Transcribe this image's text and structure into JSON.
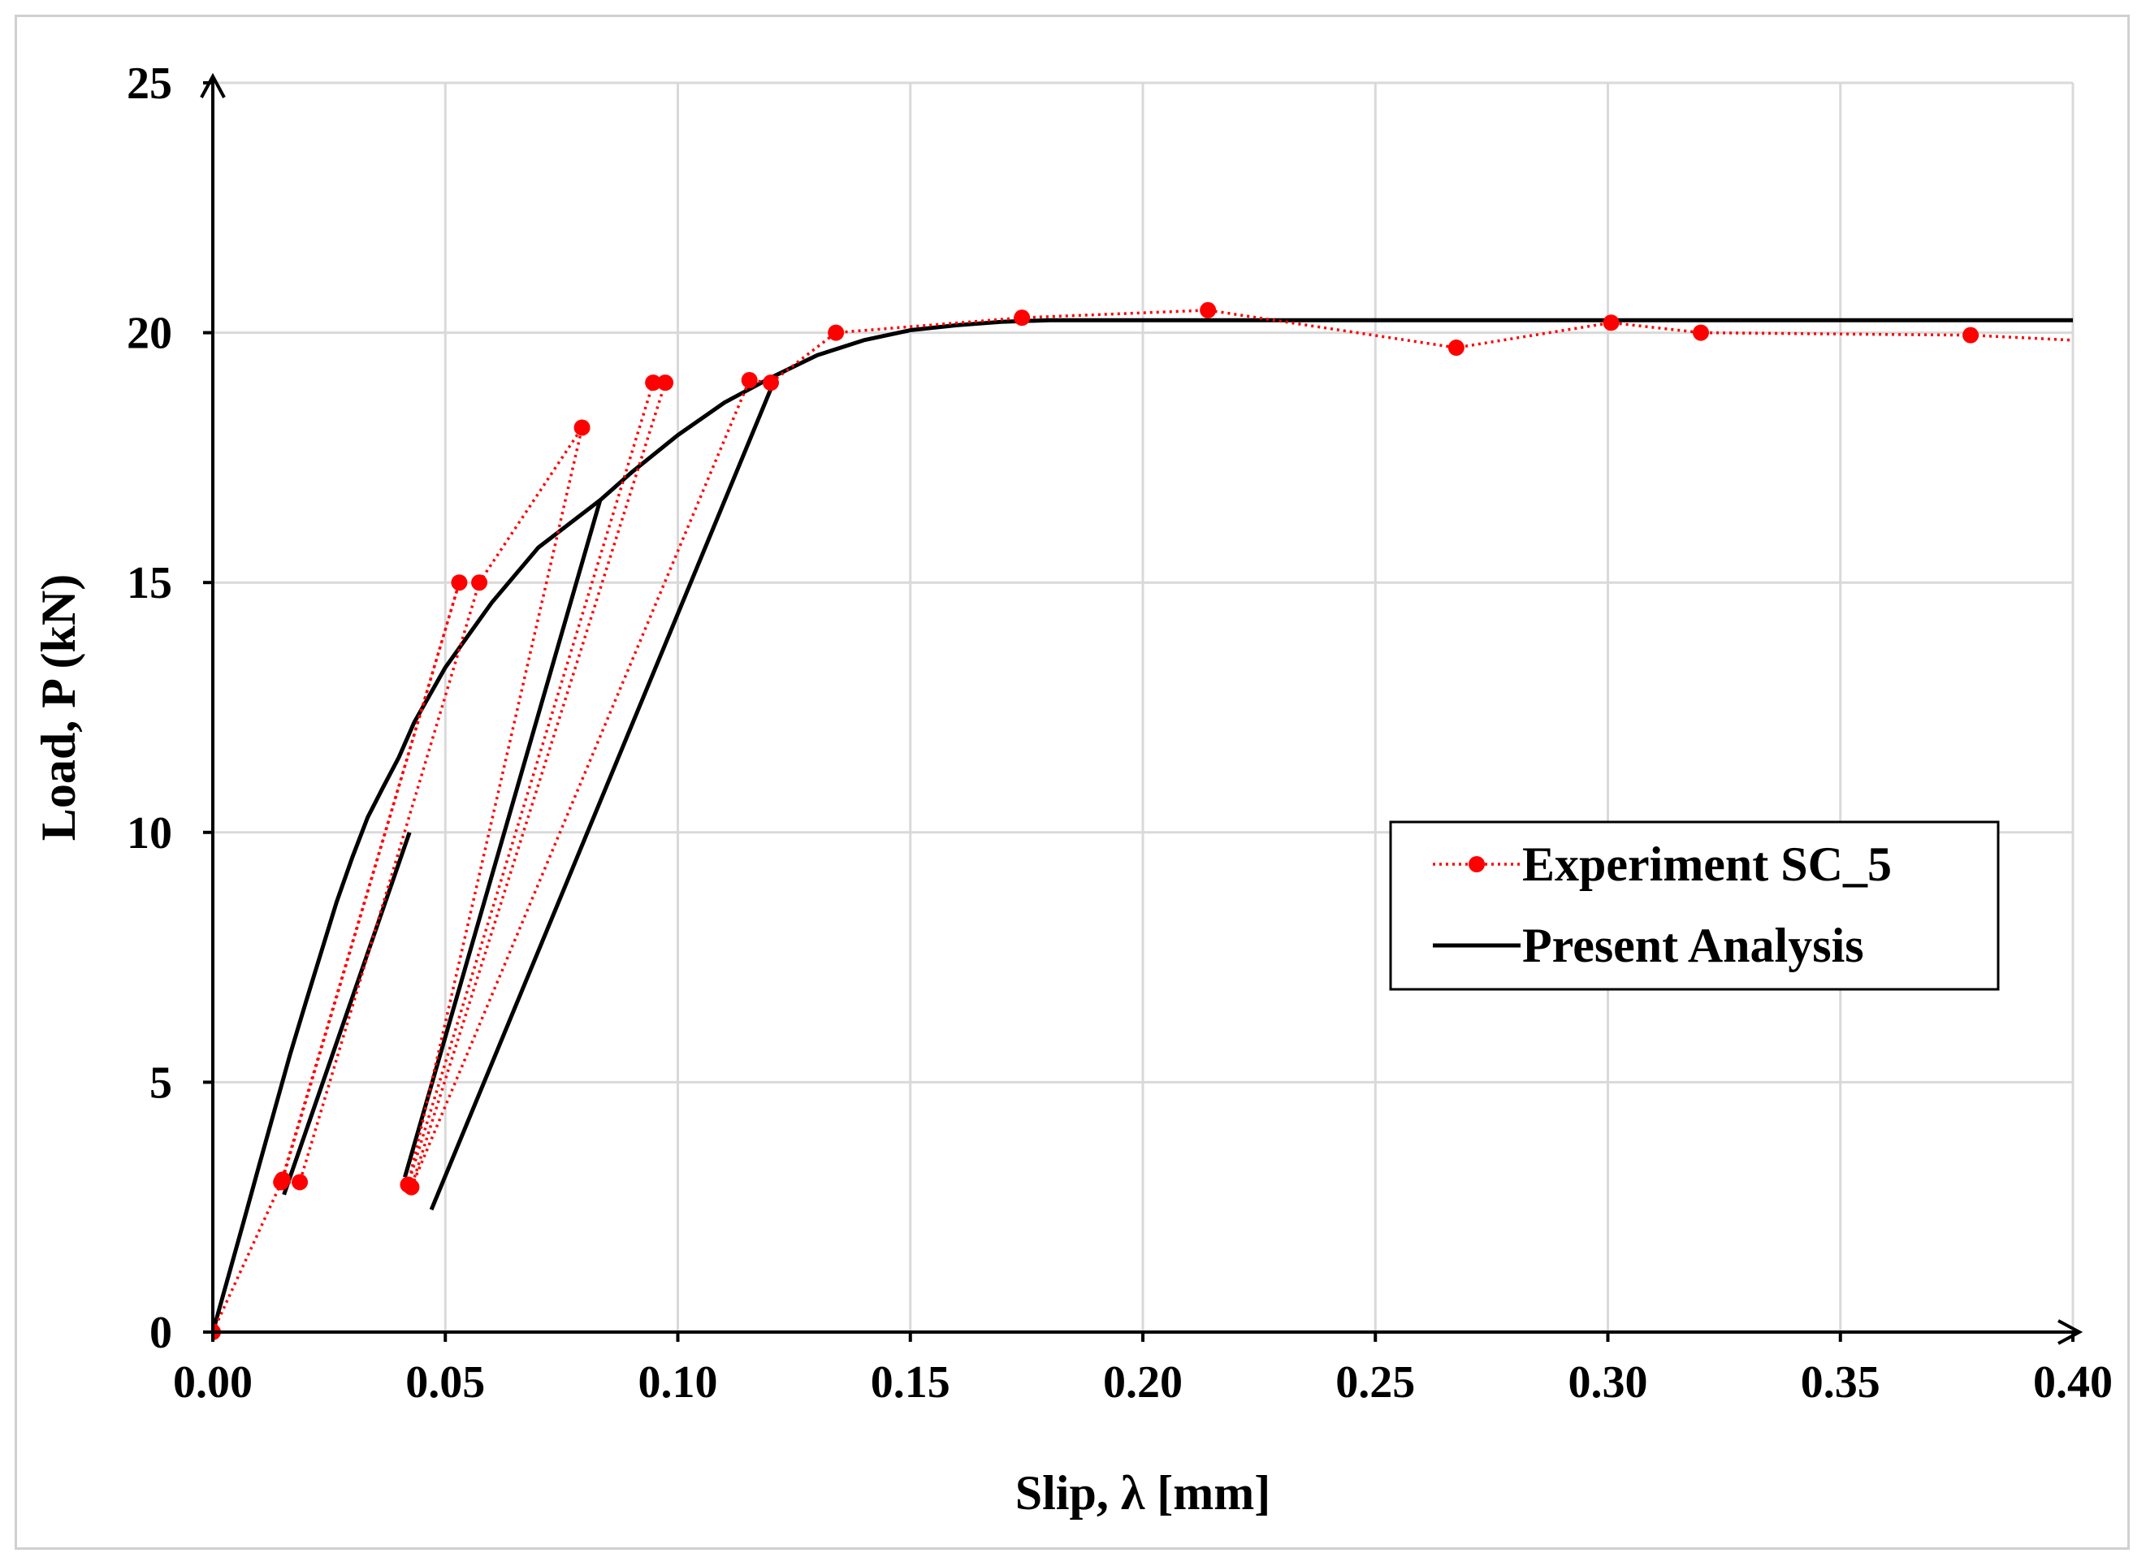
{
  "chart_data": {
    "type": "line",
    "title": "",
    "xlabel": "Slip, λ [mm]",
    "ylabel": "Load, P (kN)",
    "xlim": [
      0,
      0.4
    ],
    "ylim": [
      0,
      25
    ],
    "grid": true,
    "x_ticks": [
      0.0,
      0.05,
      0.1,
      0.15,
      0.2,
      0.25,
      0.3,
      0.35,
      0.4
    ],
    "x_tick_labels": [
      "0.00",
      "0.05",
      "0.10",
      "0.15",
      "0.20",
      "0.25",
      "0.30",
      "0.35",
      "0.40"
    ],
    "y_ticks": [
      0,
      5,
      10,
      15,
      20,
      25
    ],
    "y_tick_labels": [
      "0",
      "5",
      "10",
      "15",
      "20",
      "25"
    ],
    "legend_position": "middle-right",
    "series": [
      {
        "name": "Experiment SC_5",
        "color": "#ff0000",
        "style": "dotted-markers",
        "x": [
          0.0,
          0.015,
          0.053,
          0.0147,
          0.0187,
          0.0573,
          0.0794,
          0.042,
          0.0947,
          0.0973,
          0.0427,
          0.1154,
          0.12,
          0.134,
          0.174,
          0.214,
          0.2674,
          0.3007,
          0.32,
          0.378,
          0.4
        ],
        "y": [
          0.0,
          3.05,
          15.0,
          3.0,
          3.0,
          15.0,
          18.1,
          2.95,
          19.0,
          19.0,
          2.9,
          19.05,
          19.0,
          20.0,
          20.3,
          20.45,
          19.7,
          20.2,
          20.0,
          19.95,
          19.85
        ],
        "markers": [
          true,
          true,
          true,
          true,
          true,
          true,
          true,
          true,
          true,
          true,
          true,
          true,
          true,
          true,
          true,
          true,
          true,
          true,
          true,
          true,
          false
        ]
      },
      {
        "name": "Present Analysis",
        "color": "#000000",
        "style": "solid",
        "x": [
          0.0,
          0.0033,
          0.0066,
          0.01,
          0.0133,
          0.0166,
          0.02,
          0.0233,
          0.0266,
          0.03,
          0.0333,
          0.0366,
          0.04,
          0.0433,
          0.05,
          0.06,
          0.07,
          0.0833,
          0.09,
          0.1,
          0.11,
          0.12,
          0.13,
          0.14,
          0.15,
          0.16,
          0.17,
          0.18,
          0.19,
          0.2,
          0.4
        ],
        "y": [
          0.0,
          1.1,
          2.2,
          3.35,
          4.45,
          5.55,
          6.6,
          7.6,
          8.6,
          9.5,
          10.3,
          10.9,
          11.5,
          12.2,
          13.3,
          14.6,
          15.7,
          16.65,
          17.2,
          17.95,
          18.6,
          19.1,
          19.55,
          19.85,
          20.05,
          20.15,
          20.22,
          20.25,
          20.25,
          20.25,
          20.25
        ],
        "unloading_segments": [
          {
            "x": [
              0.0423,
              0.0153
            ],
            "y": [
              10.0,
              2.75
            ]
          },
          {
            "x": [
              0.0833,
              0.0413
            ],
            "y": [
              16.65,
              3.1
            ]
          },
          {
            "x": [
              0.121,
              0.047
            ],
            "y": [
              19.1,
              2.45
            ]
          }
        ]
      }
    ]
  }
}
